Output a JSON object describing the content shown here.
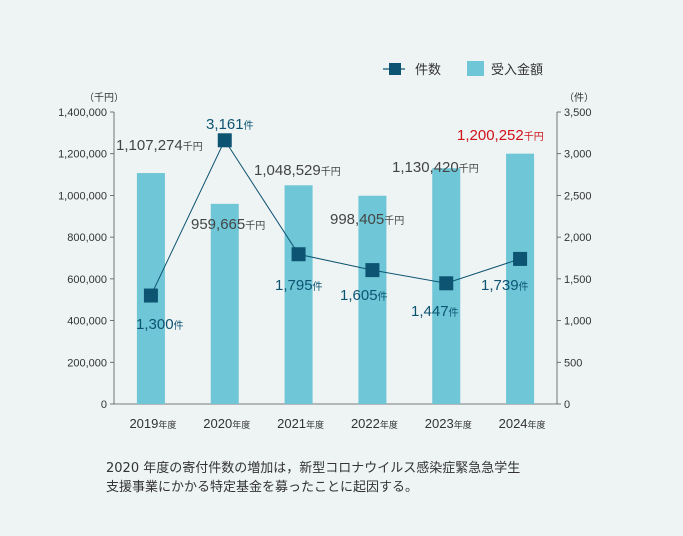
{
  "legend": {
    "count_label": "件数",
    "amount_label": "受入金額"
  },
  "chart_data": {
    "type": "bar",
    "categories": [
      "2019",
      "2020",
      "2021",
      "2022",
      "2023",
      "2024"
    ],
    "category_suffix": "年度",
    "series": [
      {
        "name": "受入金額",
        "kind": "bar",
        "axis": "left",
        "values": [
          1107274,
          959665,
          1048529,
          998405,
          1130420,
          1200252
        ],
        "labels": [
          "1,107,274",
          "959,665",
          "1,048,529",
          "998,405",
          "1,130,420",
          "1,200,252"
        ],
        "label_unit": "千円",
        "color": "#6ec6d6"
      },
      {
        "name": "件数",
        "kind": "line",
        "axis": "right",
        "values": [
          1300,
          3161,
          1795,
          1605,
          1447,
          1739
        ],
        "labels": [
          "1,300",
          "3,161",
          "1,795",
          "1,605",
          "1,447",
          "1,739"
        ],
        "label_unit": "件",
        "color": "#0d5472"
      }
    ],
    "left_axis": {
      "unit": "（千円）",
      "ylim": [
        0,
        1400000
      ],
      "ticks": [
        "0",
        "200,000",
        "400,000",
        "600,000",
        "800,000",
        "1,000,000",
        "1,200,000",
        "1,400,000"
      ]
    },
    "right_axis": {
      "unit": "（件）",
      "ylim": [
        0,
        3500
      ],
      "ticks": [
        "0",
        "500",
        "1,000",
        "1,500",
        "2,000",
        "2,500",
        "3,000",
        "3,500"
      ]
    },
    "highlight_color": "#d0121b",
    "grid": false,
    "legend_position": "top-right"
  },
  "note": {
    "line1": "2020 年度の寄付件数の増加は，新型コロナウイルス感染症緊急急学生",
    "line2": "支援事業にかかる特定基金を募ったことに起因する。"
  }
}
